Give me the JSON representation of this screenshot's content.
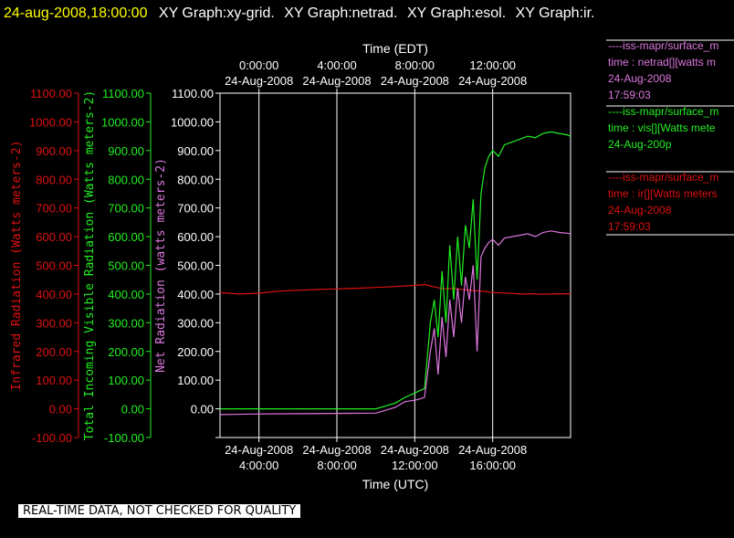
{
  "header": {
    "datetime": "24-aug-2008,18:00:00",
    "graphs": [
      "XY Graph:xy-grid.",
      "XY Graph:netrad.",
      "XY Graph:esol.",
      "XY Graph:ir."
    ]
  },
  "banner": "REAL-TIME DATA, NOT CHECKED FOR QUALITY",
  "colors": {
    "ir": "#dd1111",
    "vis": "#22ee22",
    "netrad": "#dd77dd",
    "datetime": "#ffff00",
    "axes": "#ffffff",
    "grid": "#ffffff"
  },
  "legend": [
    {
      "lines": [
        "----iss-mapr/surface_m",
        "time : netrad[][watts m",
        "24-Aug-2008",
        "17:59:03"
      ],
      "color": "#dd77dd"
    },
    {
      "lines": [
        "----iss-mapr/surface_m",
        "time : vis[][Watts mete",
        "24-Aug-200p"
      ],
      "color": "#22ee22"
    },
    {
      "lines": [
        "----iss-mapr/surface_m",
        "time : ir[][Watts meters",
        "24-Aug-2008",
        "17:59:03"
      ],
      "color": "#dd1111"
    }
  ],
  "chart_data": {
    "type": "line",
    "x_top_title": "Time (EDT)",
    "x_bottom_title": "Time (UTC)",
    "x_range_utc_hours": [
      2.0,
      20.0
    ],
    "x_ticks_top": [
      {
        "t": 4,
        "time": "0:00:00",
        "date": "24-Aug-2008"
      },
      {
        "t": 8,
        "time": "4:00:00",
        "date": "24-Aug-2008"
      },
      {
        "t": 12,
        "time": "8:00:00",
        "date": "24-Aug-2008"
      },
      {
        "t": 16,
        "time": "12:00:00",
        "date": "24-Aug-2008"
      }
    ],
    "x_ticks_bottom": [
      {
        "t": 4,
        "date": "24-Aug-2008",
        "time": "4:00:00"
      },
      {
        "t": 8,
        "date": "24-Aug-2008",
        "time": "8:00:00"
      },
      {
        "t": 12,
        "date": "24-Aug-2008",
        "time": "12:00:00"
      },
      {
        "t": 16,
        "date": "24-Aug-2008",
        "time": "16:00:00"
      }
    ],
    "ylim": [
      -100,
      1100
    ],
    "y_ticks": [
      -100,
      0,
      100,
      200,
      300,
      400,
      500,
      600,
      700,
      800,
      900,
      1000,
      1100
    ],
    "y_tick_labels_netrad": [
      "",
      "0.00",
      "100.00",
      "200.00",
      "300.00",
      "400.00",
      "500.00",
      "600.00",
      "700.00",
      "800.00",
      "900.00",
      "1000.00",
      "1100.00"
    ],
    "y_tick_labels_vis": [
      "-100.00",
      "0.00",
      "100.00",
      "200.00",
      "300.00",
      "400.00",
      "500.00",
      "600.00",
      "700.00",
      "800.00",
      "900.00",
      "1000.00",
      "1100.00"
    ],
    "y_tick_labels_ir": [
      "-100.00",
      "0.00",
      "100.00",
      "200.00",
      "300.00",
      "400.00",
      "500.00",
      "600.00",
      "700.00",
      "800.00",
      "900.00",
      "1000.00",
      "1100.00"
    ],
    "axis_labels": {
      "ir": "Infrared Radiation (Watts meters-2)",
      "vis": "Total Incoming Visible Radiation (Watts meters-2)",
      "netrad": "Net Radiation (watts meters-2)"
    },
    "grid": true,
    "series": [
      {
        "name": "ir",
        "x": [
          2.0,
          3.0,
          4.0,
          5.0,
          6.0,
          7.0,
          8.0,
          9.0,
          10.0,
          11.0,
          12.0,
          12.5,
          13.0,
          13.5,
          14.0,
          14.5,
          15.0,
          15.5,
          16.0,
          16.5,
          17.0,
          17.5,
          18.0,
          18.5,
          19.0,
          19.5,
          20.0
        ],
        "y": [
          405,
          400,
          403,
          410,
          413,
          416,
          418,
          420,
          423,
          426,
          430,
          433,
          425,
          418,
          420,
          415,
          412,
          410,
          405,
          404,
          402,
          400,
          401,
          399,
          400,
          401,
          400
        ]
      },
      {
        "name": "vis",
        "x": [
          2.0,
          4.0,
          6.0,
          8.0,
          10.0,
          11.0,
          11.5,
          12.0,
          12.3,
          12.5,
          12.8,
          13.0,
          13.2,
          13.4,
          13.6,
          13.8,
          14.0,
          14.2,
          14.4,
          14.6,
          14.8,
          15.0,
          15.2,
          15.4,
          15.6,
          15.8,
          16.0,
          16.3,
          16.6,
          17.0,
          17.4,
          17.8,
          18.2,
          18.6,
          19.0,
          19.4,
          19.8,
          20.0
        ],
        "y": [
          0,
          0,
          0,
          0,
          0,
          20,
          40,
          55,
          65,
          70,
          300,
          380,
          250,
          480,
          300,
          570,
          380,
          600,
          430,
          640,
          560,
          730,
          450,
          750,
          840,
          880,
          900,
          880,
          920,
          930,
          940,
          950,
          945,
          960,
          965,
          960,
          955,
          950
        ]
      },
      {
        "name": "netrad",
        "x": [
          2.0,
          4.0,
          6.0,
          8.0,
          10.0,
          11.0,
          11.5,
          12.0,
          12.3,
          12.5,
          12.8,
          13.0,
          13.2,
          13.4,
          13.6,
          13.8,
          14.0,
          14.2,
          14.4,
          14.6,
          14.8,
          15.0,
          15.2,
          15.4,
          15.6,
          15.8,
          16.0,
          16.3,
          16.6,
          17.0,
          17.4,
          17.8,
          18.2,
          18.6,
          19.0,
          19.4,
          19.8,
          20.0
        ],
        "y": [
          -20,
          -18,
          -17,
          -16,
          -15,
          5,
          25,
          30,
          35,
          40,
          200,
          280,
          120,
          320,
          180,
          380,
          250,
          420,
          300,
          460,
          380,
          500,
          200,
          530,
          560,
          580,
          590,
          570,
          595,
          600,
          605,
          610,
          600,
          615,
          620,
          615,
          612,
          610
        ]
      }
    ]
  }
}
